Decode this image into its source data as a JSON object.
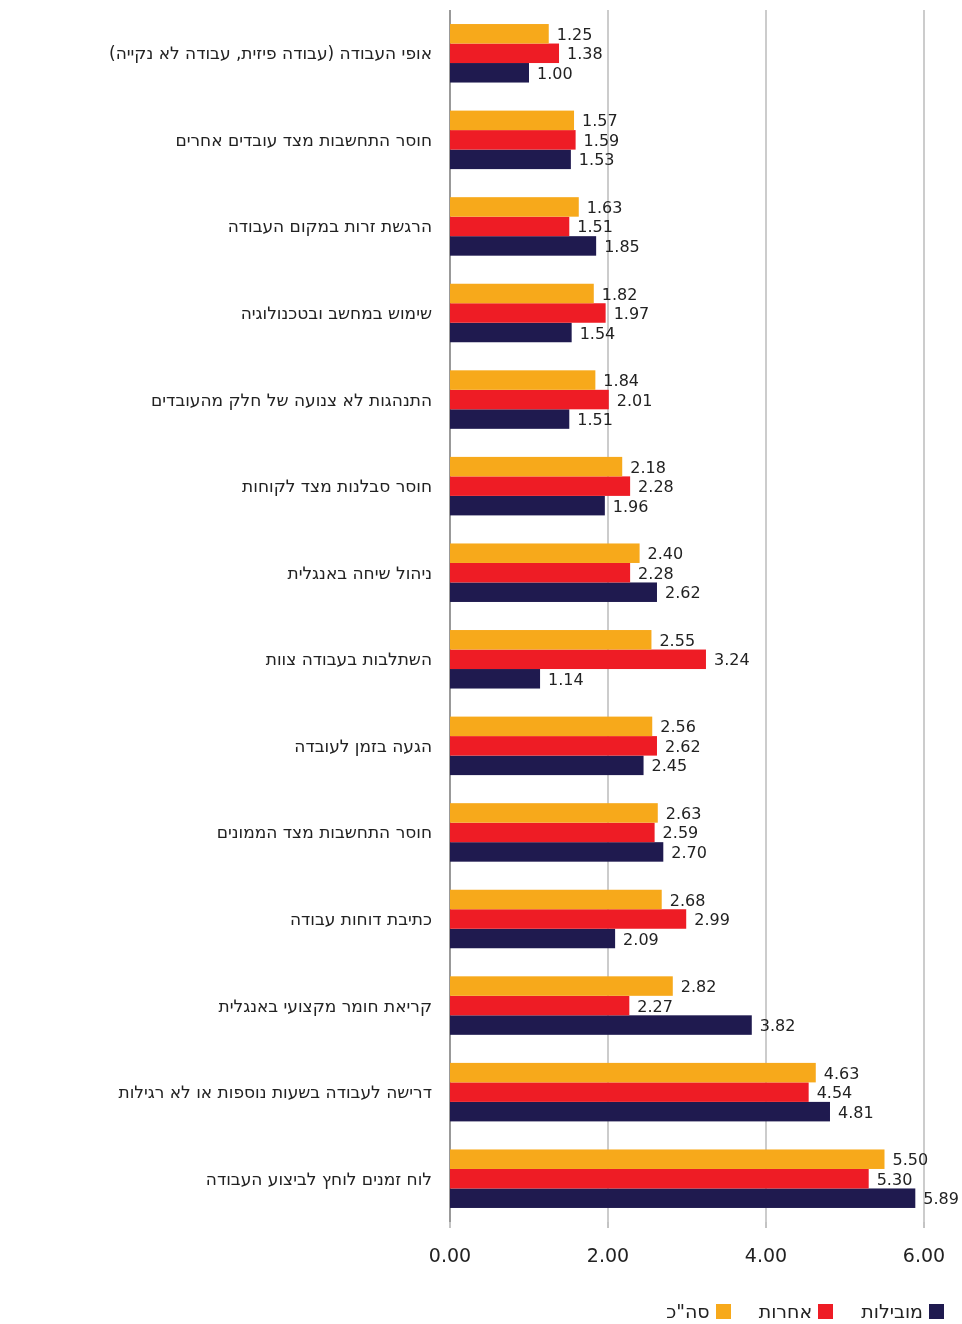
{
  "chart_data": {
    "type": "bar",
    "orientation": "horizontal",
    "categories": [
      "אופי העבודה (עבודה פיזית, עבודה לא נקייה)",
      "חוסר התחשבות מצד עובדים אחרים",
      "הרגשת זרות במקום העבודה",
      "שימוש במחשב ובטכנולוגיה",
      "התנהגות לא צנועה של חלק מהעובדים",
      "חוסר סבלנות מצד לקוחות",
      "ניהול שיחה באנגלית",
      "השתלבות בעבודה צוות",
      "הגעה בזמן לעובדה",
      "חוסר התחשבות מצד הממונים",
      "כתיבת דוחות עבודה",
      "קריאת חומר מקצועי באנגלית",
      "דרישה לעבודה בשעות נוספות או לא רגילות",
      "לוח זמנים לוחץ לביצוע העבודה"
    ],
    "series": [
      {
        "name": "מובילות",
        "color": "#1f1a4f",
        "values": [
          1.0,
          1.53,
          1.85,
          1.54,
          1.51,
          1.96,
          2.62,
          1.14,
          2.45,
          2.7,
          2.09,
          3.82,
          4.81,
          5.89
        ],
        "value_labels": [
          "1.00",
          "1.53",
          "1.85",
          "1.54",
          "1.51",
          "1.96",
          "2.62",
          "1.14",
          "2.45",
          "2.70",
          "2.09",
          "3.82",
          "4.81",
          "5.89"
        ]
      },
      {
        "name": "אחרות",
        "color": "#ee1c25",
        "values": [
          1.38,
          1.59,
          1.51,
          1.97,
          2.01,
          2.28,
          2.28,
          3.24,
          2.62,
          2.59,
          2.99,
          2.27,
          4.54,
          5.3
        ],
        "value_labels": [
          "1.38",
          "1.59",
          "1.51",
          "1.97",
          "2.01",
          "2.28",
          "2.28",
          "3.24",
          "2.62",
          "2.59",
          "2.99",
          "2.27",
          "4.54",
          "5.30"
        ]
      },
      {
        "name": "סה\"כ",
        "color": "#f7a91b",
        "values": [
          1.25,
          1.57,
          1.63,
          1.82,
          1.84,
          2.18,
          2.4,
          2.55,
          2.56,
          2.63,
          2.68,
          2.82,
          4.63,
          5.5
        ],
        "value_labels": [
          "1.25",
          "1.57",
          "1.63",
          "1.82",
          "1.84",
          "2.18",
          "2.40",
          "2.55",
          "2.56",
          "2.63",
          "2.68",
          "2.82",
          "4.63",
          "5.50"
        ]
      }
    ],
    "xlim": [
      0,
      6
    ],
    "xticks": [
      {
        "value": 0,
        "label": "0.00"
      },
      {
        "value": 2,
        "label": "2.00"
      },
      {
        "value": 4,
        "label": "4.00"
      },
      {
        "value": 6,
        "label": "6.00"
      }
    ],
    "grid": "x",
    "legend": "bottom"
  }
}
